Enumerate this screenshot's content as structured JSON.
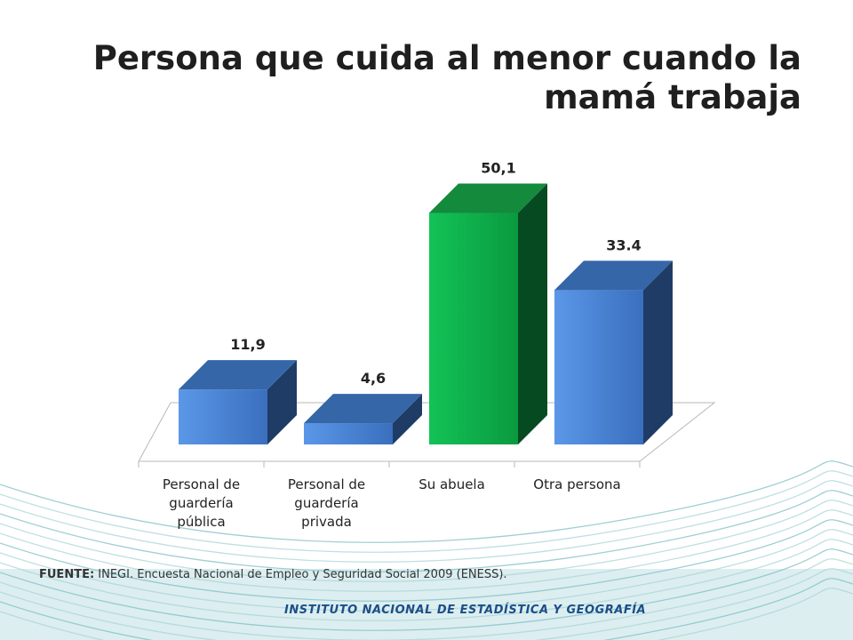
{
  "title": {
    "line1": "Persona que cuida al menor cuando la",
    "line2": "mamá trabaja"
  },
  "chart_data": {
    "type": "bar",
    "title": "Persona que cuida al menor cuando la mamá trabaja",
    "categories": [
      [
        "Personal de",
        "guardería",
        "pública"
      ],
      [
        "Personal de",
        "guardería",
        "privada"
      ],
      [
        "Su abuela"
      ],
      [
        "Otra persona"
      ]
    ],
    "values": [
      11.9,
      4.6,
      50.1,
      33.4
    ],
    "value_labels": [
      "11,9",
      "4,6",
      "50,1",
      "33.4"
    ],
    "ylim": [
      0,
      55
    ],
    "grid": false,
    "legend": "none",
    "style": "3d-column",
    "colors": {
      "default_front": "#4a86dc",
      "default_side": "#1f3c66",
      "default_top": "#3566a8",
      "highlight_front": "#0fb24f",
      "highlight_side": "#064a22",
      "highlight_top": "#138a3c"
    },
    "highlight_index": 2
  },
  "source": {
    "label": "FUENTE:",
    "text": " INEGI. Encuesta Nacional de  Empleo y Seguridad Social 2009 (ENESS)."
  },
  "footer": {
    "institution": "Instituto Nacional  de Estadística y Geografía"
  }
}
